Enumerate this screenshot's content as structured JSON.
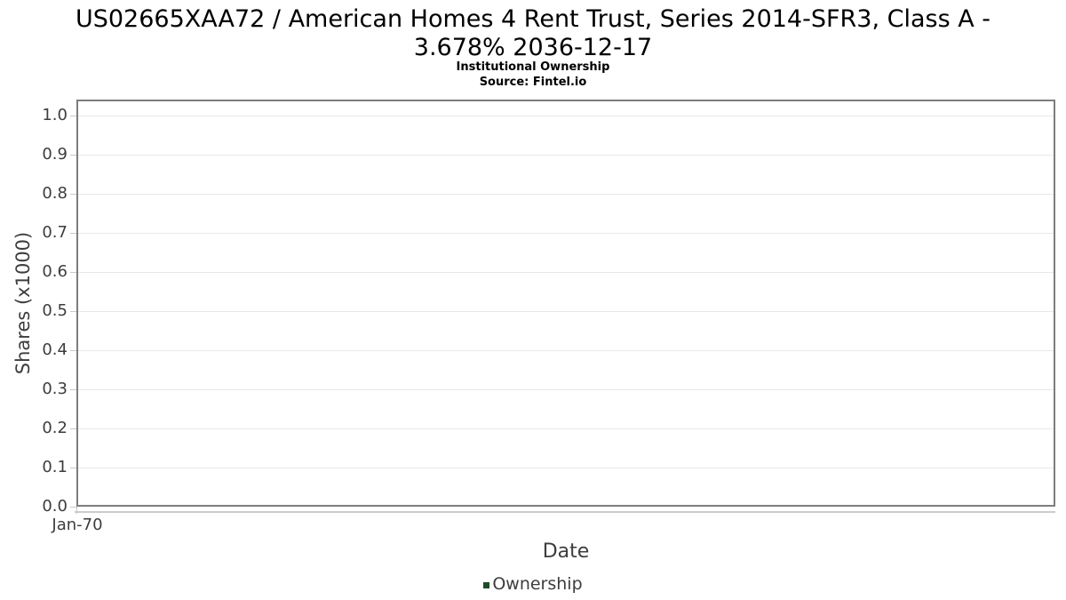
{
  "header": {
    "title_line1": "US02665XAA72 / American Homes 4 Rent Trust, Series 2014-SFR3, Class A -",
    "title_line2": "3.678% 2036-12-17",
    "subtitle": "Institutional Ownership",
    "source": "Source: Fintel.io"
  },
  "colors": {
    "series_green": "#1e4b28",
    "plot_border": "#7d7d7d",
    "gridline": "#e8e8e8",
    "tick_mark": "#c9c9c9",
    "axis_line": "#cccccc",
    "axis_text": "#3d3d3d",
    "title_text": "#000000"
  },
  "chart_data": {
    "type": "line",
    "title": "US02665XAA72 / American Homes 4 Rent Trust, Series 2014-SFR3, Class A - 3.678% 2036-12-17",
    "subtitle": "Institutional Ownership",
    "source": "Source: Fintel.io",
    "xlabel": "Date",
    "ylabel": "Shares (x1000)",
    "ylim": [
      0.0,
      1.0
    ],
    "y_ticks": [
      "1.0",
      "0.9",
      "0.8",
      "0.7",
      "0.6",
      "0.5",
      "0.4",
      "0.3",
      "0.2",
      "0.1",
      "0.0"
    ],
    "x_ticks": [
      "Jan-70"
    ],
    "grid": true,
    "legend_position": "bottom",
    "series": [
      {
        "name": "Ownership",
        "color": "#1e4b28",
        "x": [],
        "values": []
      }
    ]
  }
}
